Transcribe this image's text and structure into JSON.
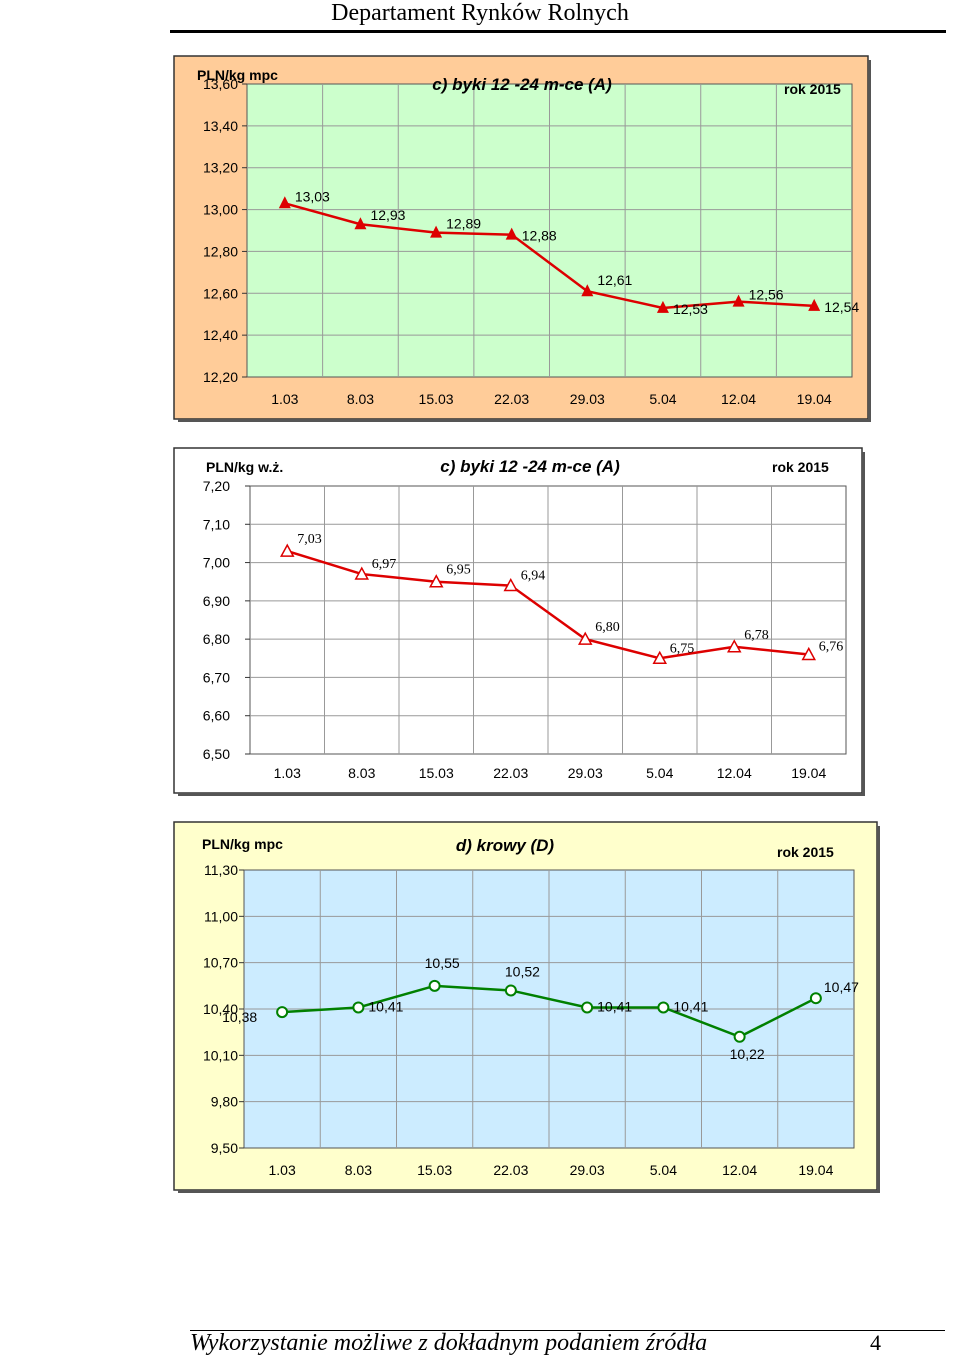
{
  "header": {
    "title": "Departament Rynków Rolnych"
  },
  "footer": {
    "text": "Wykorzystanie możliwe z dokładnym podaniem źródła",
    "page": "4"
  },
  "chart_data": [
    {
      "type": "line",
      "title": "c) byki 12 -24 m-ce (A)",
      "ylabel": "PLN/kg mpc",
      "note": "rok 2015",
      "categories": [
        "1.03",
        "8.03",
        "15.03",
        "22.03",
        "29.03",
        "5.04",
        "12.04",
        "19.04"
      ],
      "series": [
        {
          "values": [
            13.03,
            12.93,
            12.89,
            12.88,
            12.61,
            12.53,
            12.56,
            12.54
          ],
          "labels": [
            "13,03",
            "12,93",
            "12,89",
            "12,88",
            "12,61",
            "12,53",
            "12,56",
            "12,54"
          ]
        }
      ],
      "ylim": [
        12.2,
        13.6
      ],
      "yticks": [
        "13,60",
        "13,40",
        "13,20",
        "13,00",
        "12,80",
        "12,60",
        "12,40",
        "12,20"
      ],
      "grid": true,
      "colors": {
        "line": "#dd0000",
        "marker": "#dd0000",
        "plot_bg": "#ccffcc",
        "frame_bg": "#ffcc99"
      }
    },
    {
      "type": "line",
      "title": "c) byki 12 -24 m-ce (A)",
      "ylabel": "PLN/kg w.ż.",
      "note": "rok 2015",
      "categories": [
        "1.03",
        "8.03",
        "15.03",
        "22.03",
        "29.03",
        "5.04",
        "12.04",
        "19.04"
      ],
      "series": [
        {
          "values": [
            7.03,
            6.97,
            6.95,
            6.94,
            6.8,
            6.75,
            6.78,
            6.76
          ],
          "labels": [
            "7,03",
            "6,97",
            "6,95",
            "6,94",
            "6,80",
            "6,75",
            "6,78",
            "6,76"
          ]
        }
      ],
      "ylim": [
        6.5,
        7.2
      ],
      "yticks": [
        "7,20",
        "7,10",
        "7,00",
        "6,90",
        "6,80",
        "6,70",
        "6,60",
        "6,50"
      ],
      "grid": true,
      "colors": {
        "line": "#dd0000",
        "marker": "#dd0000",
        "plot_bg": "#ffffff",
        "frame_bg": "#ffffff"
      }
    },
    {
      "type": "line",
      "title": "d) krowy (D)",
      "ylabel": "PLN/kg mpc",
      "note": "rok 2015",
      "categories": [
        "1.03",
        "8.03",
        "15.03",
        "22.03",
        "29.03",
        "5.04",
        "12.04",
        "19.04"
      ],
      "series": [
        {
          "values": [
            10.38,
            10.41,
            10.55,
            10.52,
            10.41,
            10.41,
            10.22,
            10.47
          ],
          "labels": [
            "10,38",
            "10,41",
            "10,55",
            "10,52",
            "10,41",
            "10,41",
            "10,22",
            "10,47"
          ]
        }
      ],
      "ylim": [
        9.5,
        11.3
      ],
      "yticks": [
        "11,30",
        "11,00",
        "10,70",
        "10,40",
        "10,10",
        "9,80",
        "9,50"
      ],
      "grid": true,
      "colors": {
        "line": "#008000",
        "marker": "#008000",
        "plot_bg": "#ccecff",
        "frame_bg": "#ffffcc"
      }
    }
  ]
}
